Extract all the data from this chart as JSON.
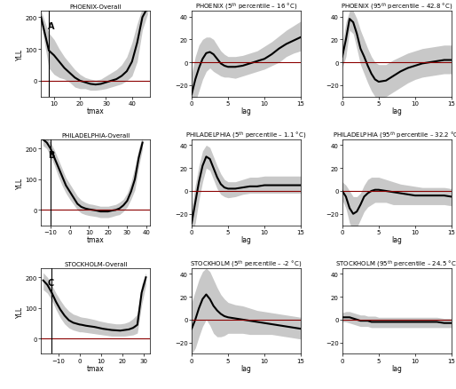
{
  "panels": {
    "A_overall": {
      "title": "PHOENIX-Overall",
      "xlabel": "tmax",
      "ylabel": "YLL",
      "label": "A",
      "xlim": [
        5,
        47
      ],
      "ylim": [
        -50,
        220
      ],
      "yticks": [
        0,
        100,
        200
      ],
      "xticks": [
        10,
        20,
        30,
        40
      ],
      "x_data": [
        5,
        8,
        10,
        12,
        14,
        16,
        18,
        20,
        22,
        24,
        26,
        28,
        30,
        32,
        34,
        36,
        38,
        40,
        42,
        44,
        46
      ],
      "y_main": [
        200,
        95,
        80,
        60,
        40,
        25,
        10,
        0,
        -5,
        -10,
        -12,
        -10,
        -5,
        0,
        5,
        15,
        30,
        60,
        120,
        200,
        230
      ],
      "y_upper": [
        220,
        150,
        130,
        100,
        75,
        55,
        35,
        20,
        10,
        5,
        2,
        5,
        15,
        25,
        35,
        50,
        75,
        120,
        180,
        230,
        250
      ],
      "y_lower": [
        180,
        40,
        20,
        10,
        5,
        -5,
        -20,
        -25,
        -25,
        -30,
        -30,
        -28,
        -25,
        -20,
        -15,
        -10,
        0,
        15,
        60,
        160,
        210
      ],
      "hline": 0,
      "vline_x": 8
    },
    "A_5th": {
      "title": "PHOENIX (5$^{th}$ percentile – 16 °C)",
      "xlabel": "lag",
      "ylabel": "",
      "label": "",
      "xlim": [
        0,
        15
      ],
      "ylim": [
        -30,
        45
      ],
      "yticks": [
        -20,
        0,
        20,
        40
      ],
      "xticks": [
        0,
        5,
        10,
        15
      ],
      "x_data": [
        0,
        0.5,
        1,
        1.5,
        2,
        2.5,
        3,
        3.5,
        4,
        4.5,
        5,
        6,
        7,
        8,
        9,
        10,
        11,
        12,
        13,
        14,
        15
      ],
      "y_main": [
        -28,
        -15,
        -5,
        3,
        8,
        9,
        7,
        3,
        -1,
        -3,
        -4,
        -4,
        -3,
        -1,
        1,
        3,
        7,
        12,
        16,
        19,
        22
      ],
      "y_upper": [
        -10,
        5,
        15,
        20,
        22,
        22,
        20,
        15,
        10,
        7,
        5,
        5,
        6,
        8,
        10,
        14,
        18,
        23,
        28,
        32,
        36
      ],
      "y_lower": [
        -42,
        -35,
        -25,
        -15,
        -8,
        -5,
        -8,
        -10,
        -12,
        -13,
        -13,
        -14,
        -12,
        -10,
        -8,
        -6,
        -3,
        0,
        5,
        8,
        10
      ],
      "hline": 0
    },
    "A_95th": {
      "title": "PHOENIX (95$^{th}$ percentile – 42.8 °C)",
      "xlabel": "lag",
      "ylabel": "",
      "label": "",
      "xlim": [
        0,
        15
      ],
      "ylim": [
        -30,
        45
      ],
      "yticks": [
        -20,
        0,
        20,
        40
      ],
      "xticks": [
        0,
        5,
        10,
        15
      ],
      "x_data": [
        0,
        0.5,
        1,
        1.5,
        2,
        2.5,
        3,
        3.5,
        4,
        4.5,
        5,
        6,
        7,
        8,
        9,
        10,
        11,
        12,
        13,
        14,
        15
      ],
      "y_main": [
        5,
        20,
        38,
        35,
        25,
        12,
        5,
        -3,
        -10,
        -15,
        -17,
        -16,
        -12,
        -8,
        -5,
        -3,
        -1,
        0,
        1,
        2,
        2
      ],
      "y_upper": [
        15,
        35,
        45,
        45,
        38,
        28,
        20,
        12,
        5,
        0,
        -2,
        -2,
        2,
        5,
        8,
        10,
        12,
        13,
        14,
        15,
        15
      ],
      "y_lower": [
        -5,
        5,
        28,
        25,
        12,
        -2,
        -10,
        -18,
        -25,
        -30,
        -32,
        -30,
        -26,
        -22,
        -18,
        -15,
        -13,
        -12,
        -11,
        -10,
        -10
      ],
      "hline": 0
    },
    "B_overall": {
      "title": "PHILADELPHIA-Overall",
      "xlabel": "tmax",
      "ylabel": "YLL",
      "label": "B",
      "xlim": [
        -15,
        42
      ],
      "ylim": [
        -50,
        230
      ],
      "yticks": [
        0,
        100,
        200
      ],
      "xticks": [
        -10,
        0,
        10,
        20,
        30,
        40
      ],
      "x_data": [
        -14,
        -12,
        -10,
        -8,
        -6,
        -4,
        -2,
        0,
        2,
        4,
        6,
        8,
        10,
        12,
        14,
        16,
        18,
        20,
        22,
        24,
        26,
        28,
        30,
        32,
        34,
        36,
        38
      ],
      "y_main": [
        230,
        220,
        200,
        170,
        140,
        110,
        80,
        60,
        40,
        20,
        10,
        5,
        2,
        0,
        -2,
        -5,
        -5,
        -5,
        -2,
        0,
        5,
        15,
        30,
        60,
        100,
        170,
        220
      ],
      "y_upper": [
        250,
        235,
        220,
        195,
        165,
        135,
        105,
        85,
        65,
        45,
        32,
        25,
        20,
        18,
        15,
        12,
        12,
        12,
        15,
        18,
        25,
        35,
        55,
        90,
        140,
        200,
        240
      ],
      "y_lower": [
        210,
        200,
        175,
        145,
        110,
        80,
        55,
        35,
        18,
        0,
        -10,
        -15,
        -18,
        -20,
        -22,
        -25,
        -25,
        -25,
        -22,
        -18,
        -15,
        -5,
        10,
        35,
        65,
        140,
        200
      ],
      "hline": 0,
      "vline_x": -10
    },
    "B_5th": {
      "title": "PHILADELPHIA (5$^{th}$ percentile – 1.1 °C)",
      "xlabel": "lag",
      "ylabel": "",
      "label": "",
      "xlim": [
        0,
        15
      ],
      "ylim": [
        -30,
        45
      ],
      "yticks": [
        -20,
        0,
        20,
        40
      ],
      "xticks": [
        0,
        5,
        10,
        15
      ],
      "x_data": [
        0,
        0.5,
        1,
        1.5,
        2,
        2.5,
        3,
        3.5,
        4,
        4.5,
        5,
        6,
        7,
        8,
        9,
        10,
        11,
        12,
        13,
        14,
        15
      ],
      "y_main": [
        -28,
        -10,
        8,
        22,
        30,
        28,
        20,
        12,
        6,
        3,
        2,
        2,
        3,
        4,
        4,
        5,
        5,
        5,
        5,
        5,
        5
      ],
      "y_upper": [
        -15,
        5,
        22,
        35,
        40,
        38,
        30,
        22,
        15,
        10,
        8,
        8,
        10,
        12,
        12,
        13,
        13,
        13,
        13,
        13,
        13
      ],
      "y_lower": [
        -42,
        -28,
        -8,
        8,
        20,
        18,
        10,
        2,
        -3,
        -5,
        -6,
        -5,
        -3,
        -2,
        -2,
        -2,
        -2,
        -2,
        -2,
        -2,
        -2
      ],
      "hline": 0
    },
    "B_95th": {
      "title": "PHILADELPHIA (95$^{th}$ percentile – 32.2 °C)",
      "xlabel": "lag",
      "ylabel": "",
      "label": "",
      "xlim": [
        0,
        15
      ],
      "ylim": [
        -30,
        45
      ],
      "yticks": [
        -20,
        0,
        20,
        40
      ],
      "xticks": [
        0,
        5,
        10,
        15
      ],
      "x_data": [
        0,
        0.5,
        1,
        1.5,
        2,
        2.5,
        3,
        3.5,
        4,
        4.5,
        5,
        6,
        7,
        8,
        9,
        10,
        11,
        12,
        13,
        14,
        15
      ],
      "y_main": [
        0,
        -5,
        -15,
        -20,
        -18,
        -12,
        -5,
        -2,
        0,
        1,
        1,
        0,
        -1,
        -2,
        -3,
        -4,
        -4,
        -4,
        -4,
        -4,
        -5
      ],
      "y_upper": [
        8,
        5,
        0,
        -5,
        -5,
        -2,
        5,
        10,
        12,
        12,
        12,
        10,
        8,
        6,
        5,
        4,
        3,
        3,
        3,
        3,
        2
      ],
      "y_lower": [
        -8,
        -15,
        -28,
        -35,
        -32,
        -25,
        -18,
        -14,
        -12,
        -10,
        -10,
        -10,
        -12,
        -12,
        -12,
        -12,
        -12,
        -12,
        -12,
        -12,
        -13
      ],
      "hline": 0
    },
    "C_overall": {
      "title": "STOCKHOLM-Overall",
      "xlabel": "tmax",
      "ylabel": "YLL",
      "label": "C",
      "xlim": [
        -18,
        33
      ],
      "ylim": [
        -50,
        230
      ],
      "yticks": [
        0,
        100,
        200
      ],
      "xticks": [
        -10,
        0,
        10,
        20,
        30
      ],
      "x_data": [
        -17,
        -15,
        -13,
        -11,
        -9,
        -7,
        -5,
        -3,
        -1,
        0,
        1,
        3,
        5,
        7,
        9,
        11,
        13,
        15,
        17,
        19,
        21,
        23,
        25,
        27,
        29,
        31
      ],
      "y_main": [
        190,
        175,
        150,
        120,
        95,
        75,
        60,
        52,
        48,
        46,
        45,
        42,
        40,
        38,
        35,
        32,
        30,
        28,
        27,
        26,
        28,
        30,
        35,
        45,
        150,
        200
      ],
      "y_upper": [
        215,
        200,
        175,
        148,
        125,
        105,
        90,
        80,
        75,
        72,
        70,
        68,
        65,
        62,
        58,
        55,
        52,
        50,
        48,
        48,
        50,
        55,
        65,
        80,
        175,
        215
      ],
      "y_lower": [
        160,
        148,
        125,
        95,
        68,
        48,
        35,
        28,
        24,
        22,
        22,
        20,
        18,
        16,
        14,
        12,
        10,
        8,
        8,
        8,
        8,
        10,
        12,
        18,
        110,
        175
      ],
      "hline": 0,
      "vline_x": -13
    },
    "C_5th": {
      "title": "STOCKHOLM (5$^{th}$ percentile – -2 °C)",
      "xlabel": "lag",
      "ylabel": "",
      "label": "",
      "xlim": [
        0,
        15
      ],
      "ylim": [
        -30,
        45
      ],
      "yticks": [
        -20,
        0,
        20,
        40
      ],
      "xticks": [
        0,
        5,
        10,
        15
      ],
      "x_data": [
        0,
        0.5,
        1,
        1.5,
        2,
        2.5,
        3,
        3.5,
        4,
        4.5,
        5,
        6,
        7,
        8,
        9,
        10,
        11,
        12,
        13,
        14,
        15
      ],
      "y_main": [
        -8,
        0,
        10,
        18,
        22,
        18,
        12,
        8,
        5,
        3,
        2,
        1,
        0,
        -1,
        -2,
        -3,
        -4,
        -5,
        -6,
        -7,
        -8
      ],
      "y_upper": [
        15,
        25,
        35,
        42,
        45,
        42,
        35,
        28,
        22,
        18,
        15,
        13,
        12,
        10,
        8,
        7,
        6,
        5,
        4,
        3,
        2
      ],
      "y_lower": [
        -30,
        -25,
        -15,
        -6,
        0,
        -5,
        -12,
        -15,
        -15,
        -14,
        -12,
        -12,
        -12,
        -13,
        -13,
        -13,
        -13,
        -14,
        -15,
        -16,
        -17
      ],
      "hline": 0
    },
    "C_95th": {
      "title": "STOCKHOLM (95$^{th}$ percentile – 24.5 °C)",
      "xlabel": "lag",
      "ylabel": "",
      "label": "",
      "xlim": [
        0,
        15
      ],
      "ylim": [
        -30,
        45
      ],
      "yticks": [
        -20,
        0,
        20,
        40
      ],
      "xticks": [
        0,
        5,
        10,
        15
      ],
      "x_data": [
        0,
        0.5,
        1,
        1.5,
        2,
        2.5,
        3,
        3.5,
        4,
        4.5,
        5,
        6,
        7,
        8,
        9,
        10,
        11,
        12,
        13,
        14,
        15
      ],
      "y_main": [
        2,
        2,
        2,
        1,
        0,
        -1,
        -1,
        -1,
        -2,
        -2,
        -2,
        -2,
        -2,
        -2,
        -2,
        -2,
        -2,
        -2,
        -2,
        -3,
        -3
      ],
      "y_upper": [
        6,
        7,
        7,
        6,
        5,
        4,
        4,
        3,
        3,
        3,
        2,
        2,
        2,
        2,
        2,
        2,
        2,
        2,
        2,
        1,
        1
      ],
      "y_lower": [
        -2,
        -2,
        -3,
        -4,
        -5,
        -6,
        -6,
        -6,
        -7,
        -7,
        -7,
        -7,
        -7,
        -7,
        -7,
        -7,
        -7,
        -7,
        -7,
        -7,
        -7
      ],
      "hline": 0
    }
  },
  "colors": {
    "line": "#000000",
    "shade": "#c8c8c8",
    "hline": "#8b0000",
    "vline": "#000000",
    "bg": "#ffffff"
  },
  "panel_order": [
    [
      "A_overall",
      "A_5th",
      "A_95th"
    ],
    [
      "B_overall",
      "B_5th",
      "B_95th"
    ],
    [
      "C_overall",
      "C_5th",
      "C_95th"
    ]
  ]
}
